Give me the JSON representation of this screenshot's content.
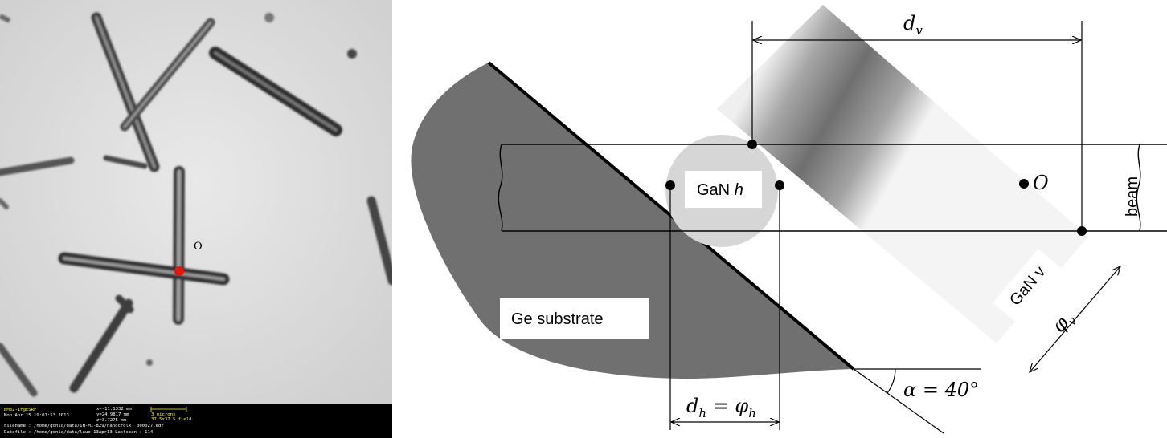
{
  "micrograph": {
    "point_label": "O",
    "status": {
      "line1": "BM32-IF@ESRF",
      "line2": "Mon Apr 15 19:07:53 2013",
      "x_coord": "x=-11.1332 mm",
      "y_coord": "y=24.9817 mm",
      "z_coord": "z=3.7275 mm",
      "scale_label": "3 microns",
      "field_label": "37.5x37.5 field",
      "filename": "Filename : /home/gonio/data/IH-MI-829/nanocrolx__000027.edf",
      "datafile": "Datafile   : /home/gonio/data/laue.13Apr13   Lastscan :  114"
    }
  },
  "diagram": {
    "dv_base": "d",
    "dv_sub": "v",
    "dh_base": "d",
    "dh_sub": "h",
    "dh_eq": " = ",
    "phih_base": "φ",
    "phih_sub": "h",
    "phiv_base": "φ",
    "phiv_sub": "v",
    "alpha_label": "α = 40°",
    "point_o": "O",
    "beam": "beam",
    "gan_h_text": "GaN ",
    "gan_h_italic": "h",
    "gan_v": "GaN v",
    "substrate": "Ge substrate"
  }
}
